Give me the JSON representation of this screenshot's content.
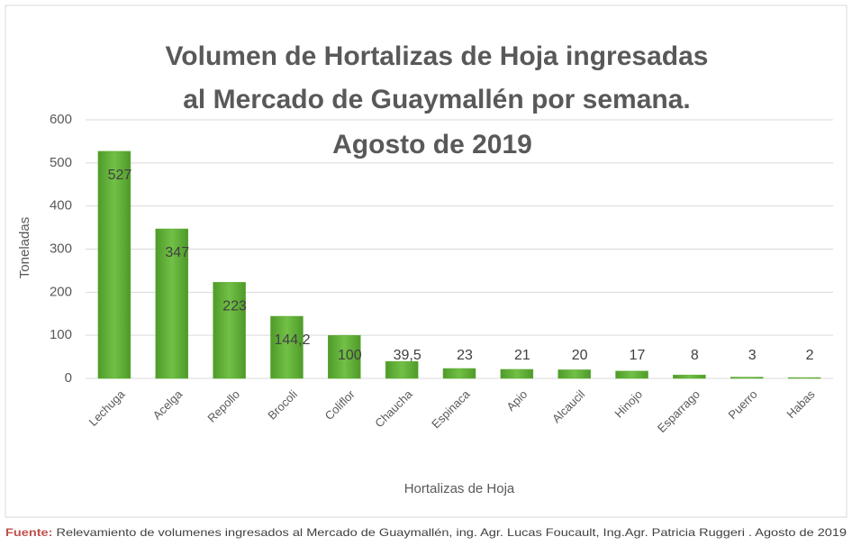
{
  "chart_data": {
    "type": "bar",
    "title": [
      "Volumen de Hortalizas de Hoja ingresadas",
      "al Mercado de Guaymallén por semana.",
      "Agosto de 2019"
    ],
    "categories": [
      "Lechuga",
      "Acelga",
      "Repollo",
      "Brocoli",
      "Coliflor",
      "Chaucha",
      "Espinaca",
      "Apio",
      "Alcaucil",
      "Hinojo",
      "Esparrago",
      "Puerro",
      "Habas"
    ],
    "values": [
      527,
      347,
      223,
      144.2,
      100,
      39.5,
      23,
      21,
      20,
      17,
      8,
      3,
      2
    ],
    "value_labels": [
      "527",
      "347",
      "223",
      "144,2",
      "100",
      "39,5",
      "23",
      "21",
      "20",
      "17",
      "8",
      "3",
      "2"
    ],
    "color": "#5fae34",
    "ylim": [
      0,
      600
    ],
    "yticks": [
      0,
      100,
      200,
      300,
      400,
      500,
      600
    ],
    "grid": true,
    "y_label": "Toneladas",
    "x_label": "Hortalizas de Hoja",
    "source_label": "Fuente:",
    "source": "Relevamiento de volumenes ingresados al Mercado de Guaymallén, ing. Agr. Lucas Foucault, Ing.Agr. Patricia Ruggeri . Agosto de 2019"
  }
}
